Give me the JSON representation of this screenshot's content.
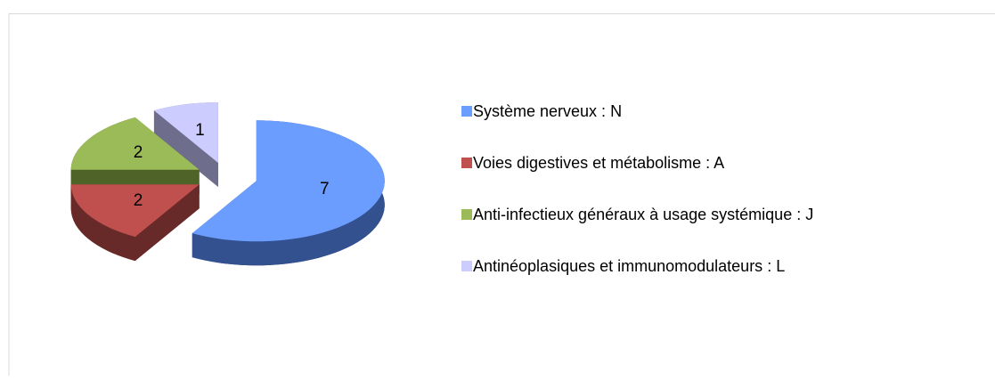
{
  "chart_data": {
    "type": "pie",
    "categories": [
      "Système nerveux : N",
      "Voies digestives et métabolisme : A",
      "Anti-infectieux généraux à usage systémique : J",
      "Antinéoplasiques et immunomodulateurs : L"
    ],
    "values": [
      7,
      2,
      2,
      1
    ],
    "colors": [
      "#6b9dff",
      "#c0504d",
      "#9bbb59",
      "#ccccff"
    ],
    "side_colors": [
      "#33508f",
      "#682a29",
      "#4f6228",
      "#6e6e8c"
    ]
  }
}
